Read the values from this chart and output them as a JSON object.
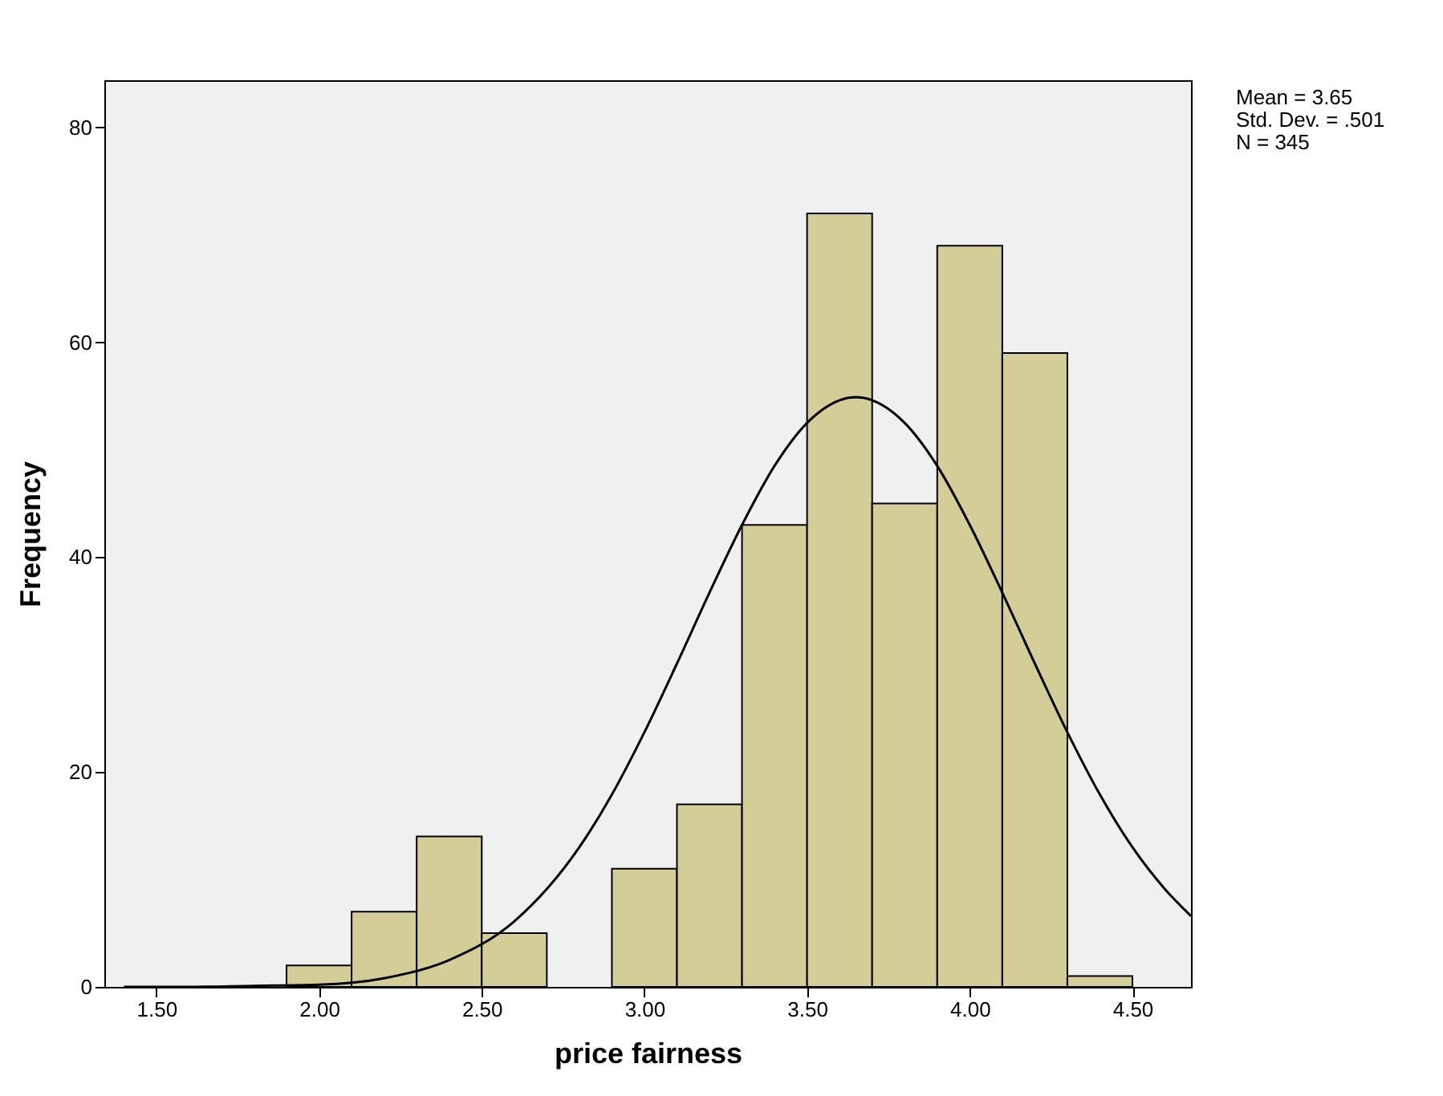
{
  "chart_data": {
    "type": "histogram",
    "xlabel": "price fairness",
    "ylabel": "Frequency",
    "annotations": [
      "Mean = 3.65",
      "Std. Dev. = .501",
      "N = 345"
    ],
    "bins": [
      1.9,
      2.1,
      2.3,
      2.5,
      2.7,
      2.9,
      3.1,
      3.3,
      3.5,
      3.7,
      3.9,
      4.1,
      4.3,
      4.5
    ],
    "values": [
      2,
      7,
      14,
      5,
      0,
      11,
      17,
      43,
      72,
      45,
      69,
      59,
      1
    ],
    "color": "#d3ce97",
    "series": [
      {
        "type": "line",
        "color": "#000000",
        "x": [
          1.4,
          1.6,
          1.8,
          2.0,
          2.2,
          2.4,
          2.6,
          2.8,
          2.9,
          3.0,
          3.1,
          3.2,
          3.3,
          3.4,
          3.5,
          3.65,
          3.8,
          3.9,
          4.0,
          4.1,
          4.2,
          4.3,
          4.4,
          4.5,
          4.6,
          4.68
        ],
        "values": [
          0,
          0,
          0.1,
          0.2,
          0.8,
          2.5,
          6.1,
          13.0,
          17.9,
          23.7,
          30.1,
          36.7,
          43.0,
          48.5,
          52.5,
          54.9,
          52.5,
          48.5,
          43.0,
          36.7,
          30.1,
          23.7,
          17.9,
          13.0,
          9.1,
          6.6
        ]
      }
    ],
    "xlim": [
      1.34,
      4.68
    ],
    "ylim": [
      0,
      84.4
    ],
    "xticks": [
      {
        "value": 1.5,
        "label": "1.50"
      },
      {
        "value": 2.0,
        "label": "2.00"
      },
      {
        "value": 2.5,
        "label": "2.50"
      },
      {
        "value": 3.0,
        "label": "3.00"
      },
      {
        "value": 3.5,
        "label": "3.50"
      },
      {
        "value": 4.0,
        "label": "4.00"
      },
      {
        "value": 4.5,
        "label": "4.50"
      }
    ],
    "yticks": [
      0,
      20,
      40,
      60,
      80
    ],
    "grid": false
  }
}
